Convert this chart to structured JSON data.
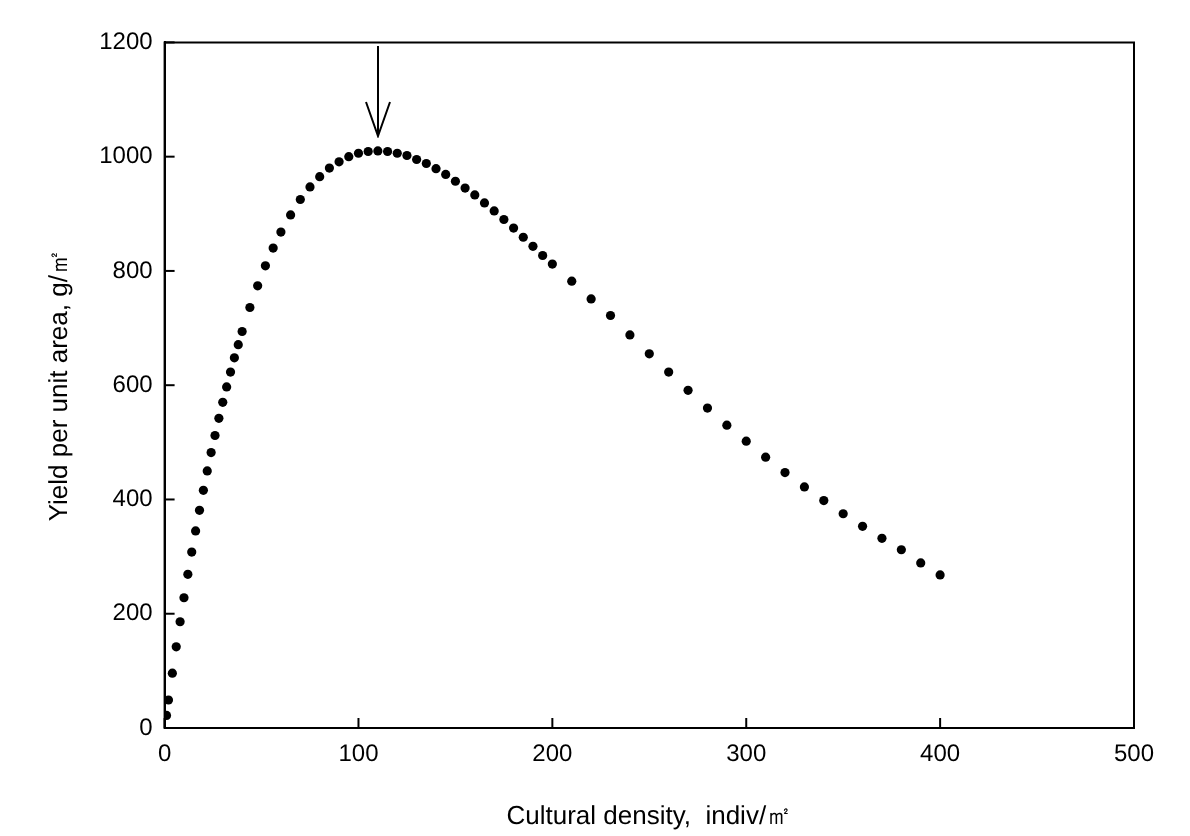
{
  "chart_data": {
    "type": "scatter",
    "xlabel": "Cultural density,  indiv/㎡",
    "ylabel": "Yield per unit area, g/㎡",
    "xlim": [
      0,
      500
    ],
    "xticks": [
      0,
      100,
      200,
      300,
      400,
      500
    ],
    "ylim": [
      0,
      1200
    ],
    "yticks": [
      0,
      200,
      400,
      600,
      800,
      1000,
      1200
    ],
    "marker": "circle",
    "series": [
      {
        "color": "#000000",
        "x": [
          1,
          2,
          4,
          6,
          8,
          10,
          12,
          14,
          16,
          18,
          20,
          22,
          24,
          26,
          28,
          30,
          32,
          34,
          36,
          38,
          40,
          44,
          48,
          52,
          56,
          60,
          65,
          70,
          75,
          80,
          85,
          90,
          95,
          100,
          105,
          110,
          115,
          120,
          125,
          130,
          135,
          140,
          145,
          150,
          155,
          160,
          165,
          170,
          175,
          180,
          185,
          190,
          195,
          200,
          210,
          220,
          230,
          240,
          250,
          260,
          270,
          280,
          290,
          300,
          310,
          320,
          330,
          340,
          350,
          360,
          370,
          380,
          390,
          400
        ],
        "values": [
          22,
          49,
          96,
          142,
          186,
          228,
          269,
          308,
          345,
          381,
          416,
          450,
          482,
          512,
          542,
          570,
          597,
          623,
          648,
          671,
          694,
          736,
          774,
          809,
          840,
          868,
          898,
          925,
          947,
          965,
          980,
          991,
          1000,
          1006,
          1009,
          1010,
          1009,
          1006,
          1002,
          995,
          988,
          979,
          969,
          957,
          945,
          933,
          919,
          905,
          890,
          875,
          859,
          843,
          827,
          812,
          782,
          751,
          722,
          688,
          655,
          623,
          591,
          560,
          530,
          502,
          474,
          447,
          422,
          398,
          375,
          353,
          332,
          312,
          289,
          268
        ]
      }
    ]
  }
}
